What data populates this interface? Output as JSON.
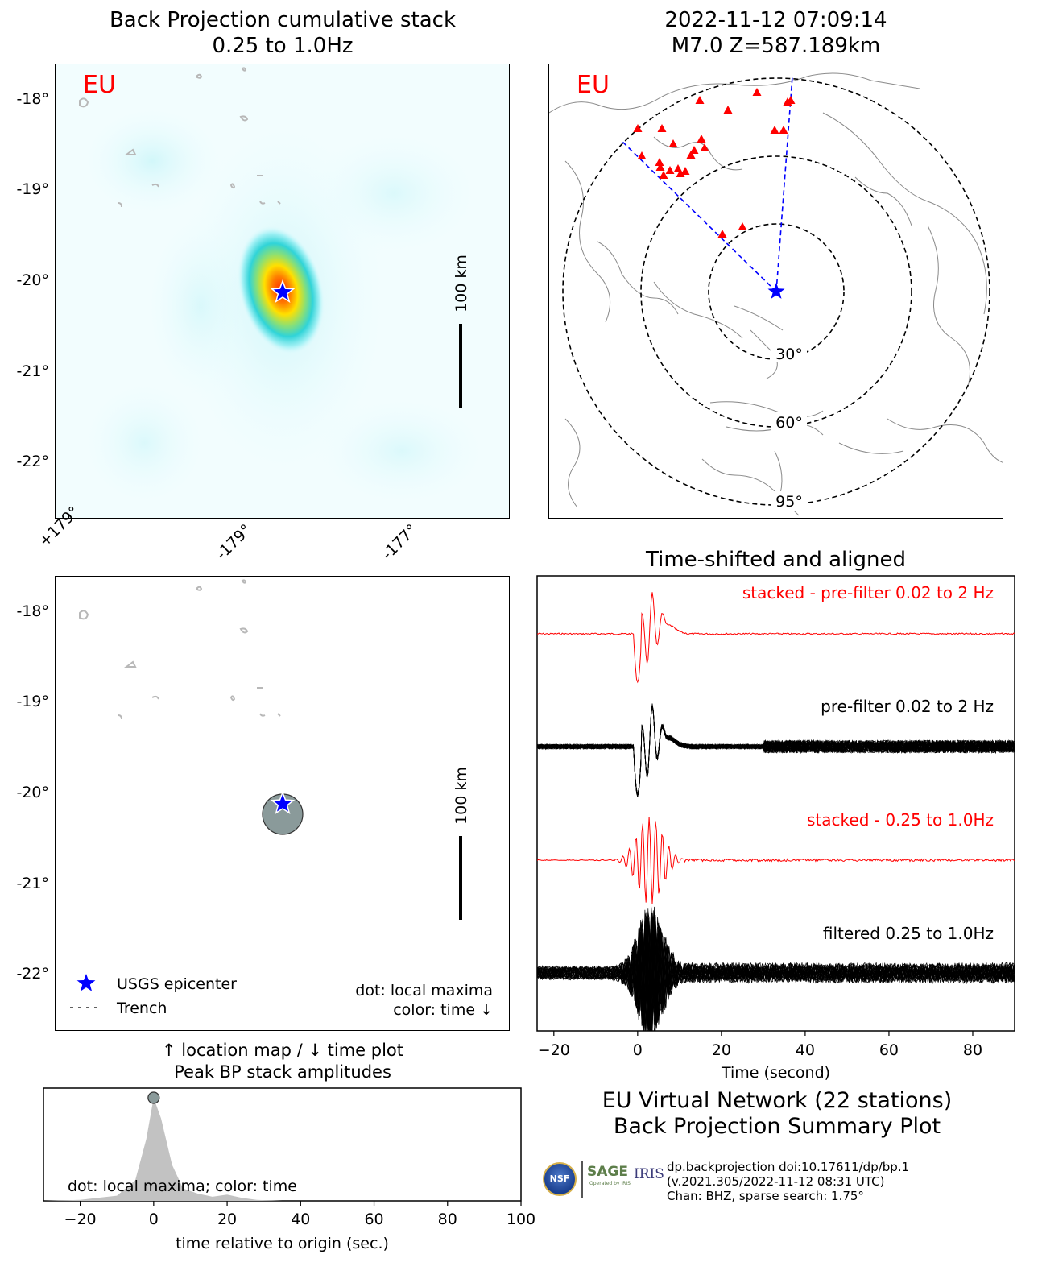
{
  "bp_map": {
    "title": "Back Projection cumulative stack",
    "subtitle": "0.25 to 1.0Hz",
    "network_tag": "EU",
    "lat_ticks": [
      "-18°",
      "-19°",
      "-20°",
      "-21°",
      "-22°"
    ],
    "lon_ticks": [
      "+179°",
      "-179°",
      "-177°"
    ],
    "scale_label": "100 km",
    "epicenter": {
      "lat": -20.13,
      "lon": -178.4
    }
  },
  "globe_map": {
    "title": "2022-11-12 07:09:14",
    "subtitle": "M7.0 Z=587.189km",
    "network_tag": "EU",
    "ring_labels": [
      "30°",
      "60°",
      "95°"
    ],
    "station_marker_color": "#ff0000",
    "path_color": "#0000ff"
  },
  "location_map": {
    "lat_ticks": [
      "-18°",
      "-19°",
      "-20°",
      "-21°",
      "-22°"
    ],
    "scale_label": "100 km",
    "legend": {
      "epicenter_label": "USGS epicenter",
      "trench_label": "Trench"
    },
    "note_line1": "dot: local maxima",
    "note_line2": "color: time ↓",
    "caption_line1": "↑ location map / ↓ time plot",
    "caption_line2": "Peak BP stack amplitudes"
  },
  "chart_data": [
    {
      "type": "line",
      "title": "Time-shifted and aligned",
      "xlabel": "Time (second)",
      "ylabel": "",
      "xlim": [
        -24,
        90
      ],
      "x_ticks": [
        -20,
        0,
        20,
        40,
        60,
        80
      ],
      "series": [
        {
          "name": "stacked - pre-filter 0.02 to 2 Hz",
          "color": "#ff0000"
        },
        {
          "name": "pre-filter 0.02 to 2 Hz",
          "color": "#000000"
        },
        {
          "name": "stacked - 0.25 to 1.0Hz",
          "color": "#ff0000"
        },
        {
          "name": "filtered 0.25 to 1.0Hz",
          "color": "#000000"
        }
      ]
    },
    {
      "type": "area",
      "title": "",
      "xlabel": "time relative to origin (sec.)",
      "ylabel": "",
      "xlim": [
        -30,
        100
      ],
      "x_ticks": [
        -20,
        0,
        20,
        40,
        60,
        80,
        100
      ],
      "x": [
        -30,
        -20,
        -10,
        -5,
        -2,
        0,
        2,
        5,
        8,
        12,
        16,
        20,
        24,
        28,
        35,
        100
      ],
      "values": [
        0.0,
        0.01,
        0.05,
        0.2,
        0.6,
        1.0,
        0.8,
        0.35,
        0.12,
        0.07,
        0.04,
        0.06,
        0.03,
        0.01,
        0.0,
        0.0
      ],
      "peak": {
        "x": 0,
        "y": 1.0
      },
      "note": "dot: local maxima; color: time"
    }
  ],
  "summary": {
    "line1": "EU Virtual Network (22 stations)",
    "line2": "Back Projection Summary Plot",
    "product_line1": "dp.backprojection doi:10.17611/dp/bp.1",
    "product_line2": "(v.2021.305/2022-11-12 08:31 UTC)",
    "product_line3": "Chan: BHZ, sparse search: 1.75°"
  },
  "logos": {
    "nsf": "NSF",
    "sage": "SAGE",
    "sage_sub": "Operated by IRIS",
    "iris": "IRIS"
  }
}
